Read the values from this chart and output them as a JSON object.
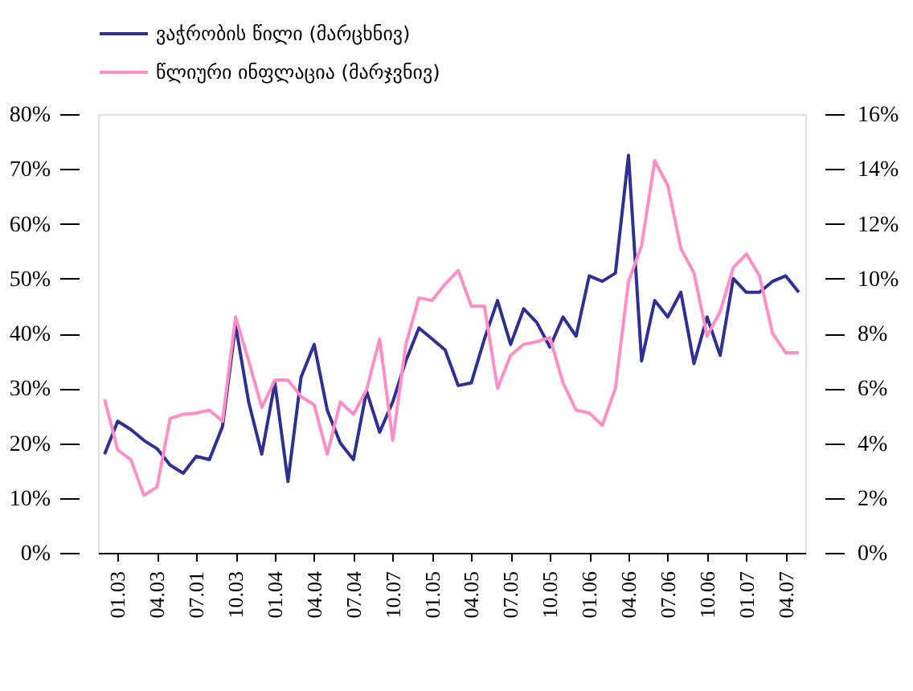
{
  "chart_data": {
    "type": "line",
    "categories": [
      null,
      "01.03",
      null,
      null,
      "04.03",
      null,
      null,
      "07.01",
      null,
      null,
      "10.03",
      null,
      null,
      "01.04",
      null,
      null,
      "04.04",
      null,
      null,
      "07.04",
      null,
      null,
      "10.07",
      null,
      null,
      "01.05",
      null,
      null,
      "04.05",
      null,
      null,
      "07.05",
      null,
      null,
      "10.05",
      null,
      null,
      "01.06",
      null,
      null,
      "04.06",
      null,
      null,
      "07.06",
      null,
      null,
      "10.06",
      null,
      null,
      "01.07",
      null,
      null,
      "04.07",
      null
    ],
    "series": [
      {
        "name": "ვაჭრობის წილი (მარცხნივ)",
        "color": "#2e3192",
        "values": [
          18,
          24,
          22.5,
          20.5,
          19,
          16,
          14.5,
          17.6,
          17,
          23,
          41.5,
          27.5,
          18,
          31,
          13,
          32,
          38,
          26,
          20,
          17,
          29.5,
          22,
          27.5,
          35,
          41,
          39,
          37,
          30.5,
          31,
          39,
          46,
          38,
          44.5,
          42,
          37.5,
          43,
          39.5,
          50.5,
          49.5,
          51,
          72.5,
          35,
          46,
          43,
          47.5,
          34.5,
          43,
          36,
          50,
          47.5,
          47.5,
          49.5,
          50.5,
          47.5
        ]
      },
      {
        "name": "წლიური ინფლაცია (მარჯვნივ)",
        "color": "#ff8ec6",
        "axis": "y2",
        "values": [
          5.6,
          3.75,
          3.4,
          2.1,
          2.4,
          4.9,
          5.05,
          5.1,
          5.2,
          4.8,
          8.6,
          7,
          5.3,
          6.3,
          6.3,
          5.7,
          5.4,
          3.6,
          5.5,
          5.05,
          5.95,
          7.8,
          4.1,
          7.6,
          9.3,
          9.2,
          9.8,
          10.3,
          9,
          9,
          6,
          7.2,
          7.6,
          7.7,
          7.85,
          6.2,
          5.2,
          5.1,
          4.65,
          6,
          9.9,
          11.2,
          14.3,
          13.4,
          11.1,
          10.2,
          7.9,
          8.8,
          10.4,
          10.9,
          10.1,
          8,
          7.3,
          7.3
        ]
      }
    ],
    "ylim": [
      0,
      80
    ],
    "yticks": [
      {
        "value": 0,
        "label": "0%"
      },
      {
        "value": 10,
        "label": "10%"
      },
      {
        "value": 20,
        "label": "20%"
      },
      {
        "value": 30,
        "label": "30%"
      },
      {
        "value": 40,
        "label": "40%"
      },
      {
        "value": 50,
        "label": "50%"
      },
      {
        "value": 60,
        "label": "60%"
      },
      {
        "value": 70,
        "label": "70%"
      },
      {
        "value": 80,
        "label": "80%"
      }
    ],
    "y2lim": [
      0,
      16
    ],
    "y2ticks": [
      {
        "value": 0,
        "label": "0%"
      },
      {
        "value": 2,
        "label": "2%"
      },
      {
        "value": 4,
        "label": "4%"
      },
      {
        "value": 6,
        "label": "6%"
      },
      {
        "value": 8,
        "label": "8%"
      },
      {
        "value": 10,
        "label": "10%"
      },
      {
        "value": 12,
        "label": "12%"
      },
      {
        "value": 14,
        "label": "14%"
      },
      {
        "value": 16,
        "label": "16%"
      }
    ],
    "grid": false,
    "legend": "top left",
    "marker": "none",
    "line_style": "solid"
  }
}
